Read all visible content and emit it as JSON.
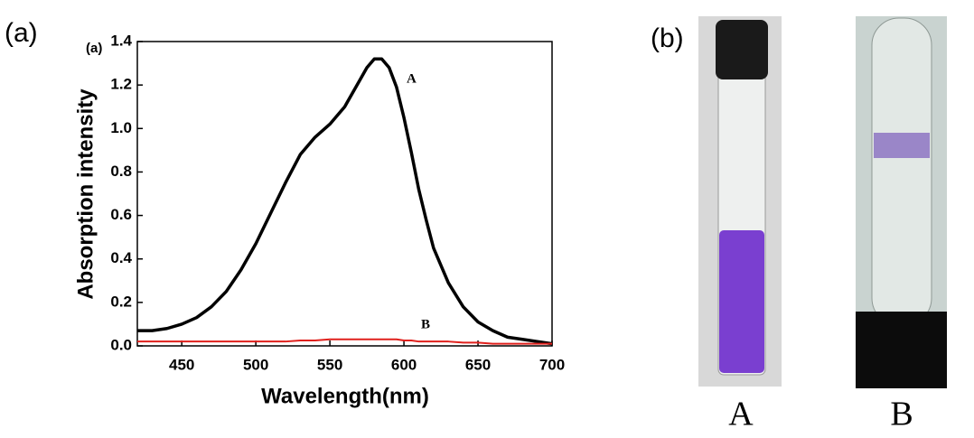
{
  "chart_data": {
    "type": "line",
    "inner_label": "(a)",
    "x_label": "Wavelength(nm)",
    "y_label": "Absorption intensity",
    "x": [
      420,
      430,
      440,
      450,
      460,
      470,
      480,
      490,
      500,
      510,
      520,
      530,
      540,
      550,
      560,
      570,
      575,
      580,
      585,
      590,
      595,
      600,
      605,
      610,
      615,
      620,
      630,
      640,
      650,
      660,
      670,
      680,
      690,
      700
    ],
    "series": [
      {
        "name": "A",
        "color": "#000000",
        "values": [
          0.07,
          0.07,
          0.08,
          0.1,
          0.13,
          0.18,
          0.25,
          0.35,
          0.47,
          0.61,
          0.75,
          0.88,
          0.96,
          1.02,
          1.1,
          1.22,
          1.28,
          1.32,
          1.32,
          1.28,
          1.19,
          1.05,
          0.89,
          0.72,
          0.58,
          0.45,
          0.29,
          0.18,
          0.11,
          0.07,
          0.04,
          0.03,
          0.02,
          0.01
        ]
      },
      {
        "name": "B",
        "color": "#e0201c",
        "values": [
          0.02,
          0.02,
          0.02,
          0.02,
          0.02,
          0.02,
          0.02,
          0.02,
          0.02,
          0.02,
          0.02,
          0.025,
          0.025,
          0.03,
          0.03,
          0.03,
          0.03,
          0.03,
          0.03,
          0.03,
          0.03,
          0.025,
          0.025,
          0.02,
          0.02,
          0.02,
          0.02,
          0.015,
          0.015,
          0.01,
          0.01,
          0.01,
          0.01,
          0.01
        ]
      }
    ],
    "xlim": [
      420,
      700
    ],
    "xticks": [
      450,
      500,
      550,
      600,
      650,
      700
    ],
    "ylim": [
      0,
      1.4
    ],
    "yticks": [
      {
        "value": 0,
        "label": "0.0"
      },
      0.2,
      0.4,
      0.6,
      0.8,
      {
        "value": 1,
        "label": "1.0"
      },
      1.2,
      1.4
    ]
  },
  "figure": {
    "panel_a": "(a)",
    "panel_b": "(b)",
    "photo_labels": [
      "A",
      "B"
    ]
  }
}
